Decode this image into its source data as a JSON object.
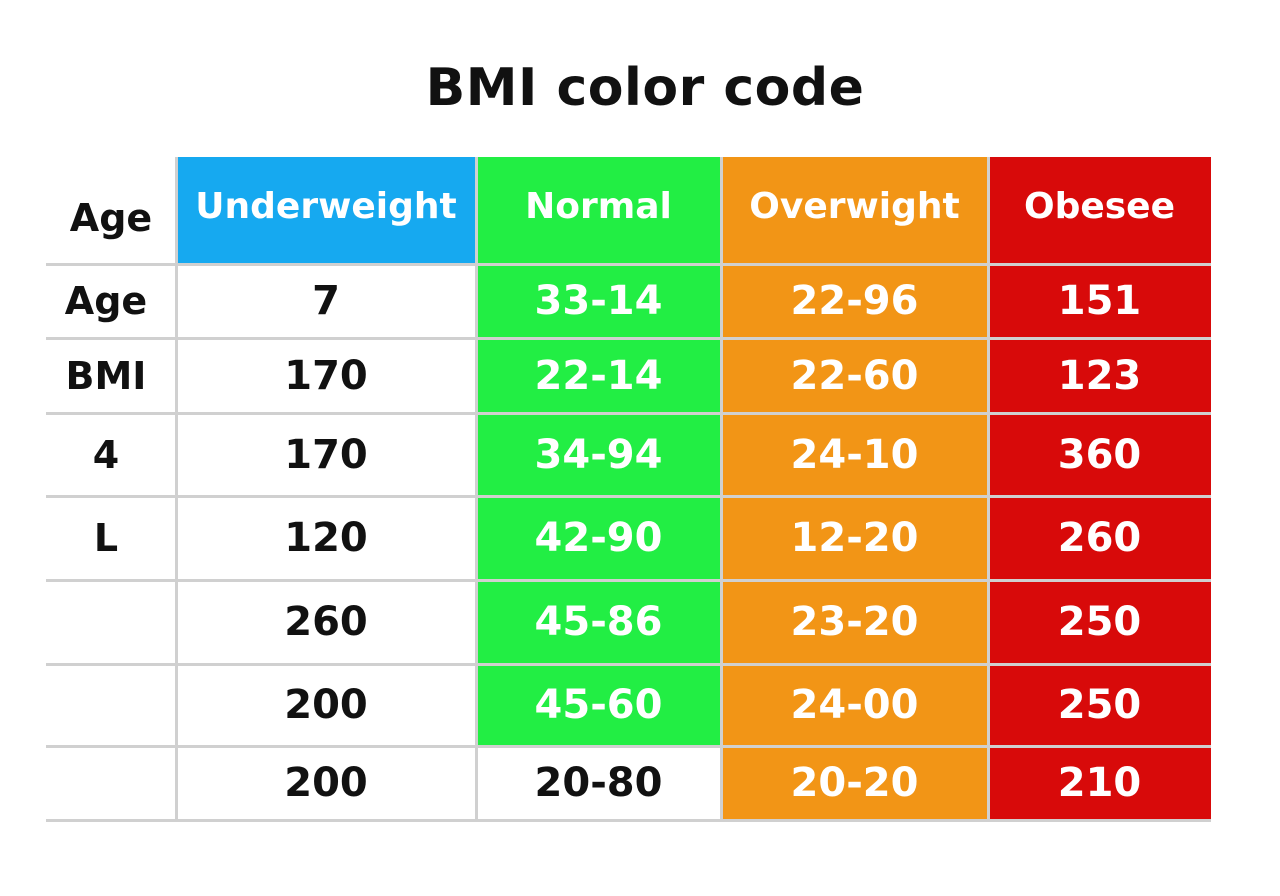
{
  "title": "BMI color code",
  "chart_data": {
    "type": "table",
    "title": "BMI color code",
    "columns": [
      "Age",
      "Underweight",
      "Normal",
      "Overwight",
      "Obesee"
    ],
    "header_colors": [
      "#ffffff",
      "#16a9f0",
      "#22ee44",
      "#f29516",
      "#d80a0a"
    ],
    "rows": [
      [
        "Age",
        "7",
        "33-14",
        "22-96",
        "151"
      ],
      [
        "BMI",
        "170",
        "22-14",
        "22-60",
        "123"
      ],
      [
        "4",
        "170",
        "34-94",
        "24-10",
        "360"
      ],
      [
        "L",
        "120",
        "42-90",
        "12-20",
        "260"
      ],
      [
        "",
        "260",
        "45-86",
        "23-20",
        "250"
      ],
      [
        "",
        "200",
        "45-60",
        "24-00",
        "250"
      ],
      [
        "",
        "200",
        "20-80",
        "20-20",
        "210"
      ]
    ],
    "cell_colors": [
      [
        "#ffffff",
        "#ffffff",
        "#22ee44",
        "#f29516",
        "#d80a0a"
      ],
      [
        "#ffffff",
        "#ffffff",
        "#22ee44",
        "#f29516",
        "#d80a0a"
      ],
      [
        "#ffffff",
        "#ffffff",
        "#22ee44",
        "#f29516",
        "#d80a0a"
      ],
      [
        "#ffffff",
        "#ffffff",
        "#22ee44",
        "#f29516",
        "#d80a0a"
      ],
      [
        "#ffffff",
        "#ffffff",
        "#22ee44",
        "#f29516",
        "#d80a0a"
      ],
      [
        "#ffffff",
        "#ffffff",
        "#22ee44",
        "#f29516",
        "#d80a0a"
      ],
      [
        "#ffffff",
        "#ffffff",
        "#ffffff",
        "#f29516",
        "#d80a0a"
      ]
    ]
  }
}
